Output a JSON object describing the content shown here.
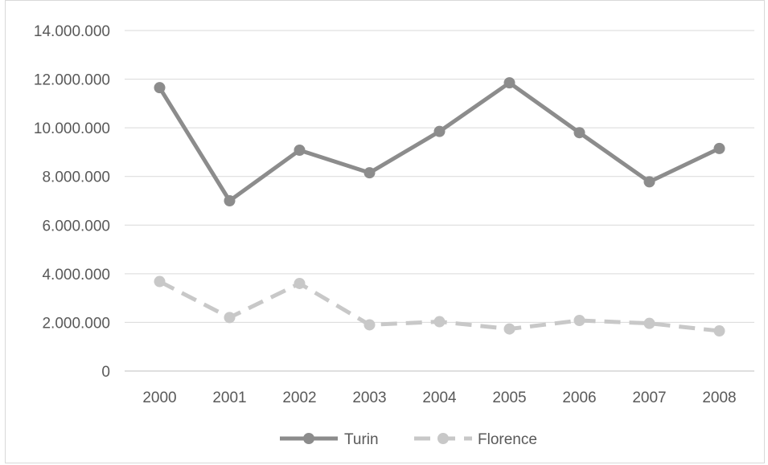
{
  "chart_data": {
    "type": "line",
    "categories": [
      "2000",
      "2001",
      "2002",
      "2003",
      "2004",
      "2005",
      "2006",
      "2007",
      "2008"
    ],
    "ylim": [
      0,
      14000000
    ],
    "yticks": [
      0,
      2000000,
      4000000,
      6000000,
      8000000,
      10000000,
      12000000,
      14000000
    ],
    "ytick_labels": [
      "0",
      "2.000.000",
      "4.000.000",
      "6.000.000",
      "8.000.000",
      "10.000.000",
      "12.000.000",
      "14.000.000"
    ],
    "grid": true,
    "legend_position": "bottom",
    "series": [
      {
        "name": "Turin",
        "values": [
          11650000,
          7000000,
          9080000,
          8150000,
          9850000,
          11850000,
          9800000,
          7780000,
          9150000
        ],
        "color": "#8c8c8c",
        "dash": "solid"
      },
      {
        "name": "Florence",
        "values": [
          3680000,
          2200000,
          3600000,
          1900000,
          2030000,
          1730000,
          2080000,
          1960000,
          1650000
        ],
        "color": "#c8c8c8",
        "dash": "dashed"
      }
    ]
  }
}
